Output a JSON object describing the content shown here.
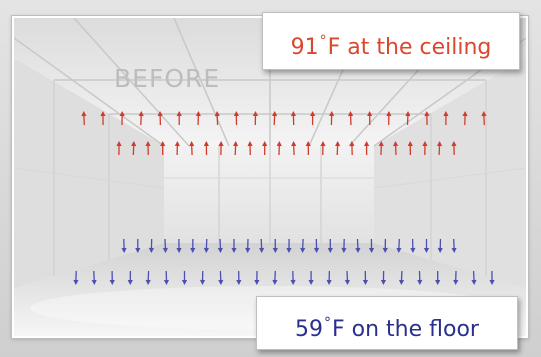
{
  "labels": {
    "before": "BEFORE",
    "ceiling_temp": "91",
    "ceiling_degree": "°",
    "ceiling_text": "F at the ceiling",
    "floor_temp": "59",
    "floor_degree": "°",
    "floor_text": "F on the floor"
  },
  "colors": {
    "warm_arrow": "#d23b2a",
    "cool_arrow": "#4a4fb0",
    "ceiling_text": "#d9482e",
    "floor_text": "#2a2f8e"
  },
  "arrow_rows": [
    {
      "name": "warm-row-1",
      "direction": "up",
      "color_key": "warm_arrow",
      "count": 22
    },
    {
      "name": "warm-row-2",
      "direction": "up",
      "color_key": "warm_arrow",
      "count": 24
    },
    {
      "name": "cool-row-1",
      "direction": "down",
      "color_key": "cool_arrow",
      "count": 25
    },
    {
      "name": "cool-row-2",
      "direction": "down",
      "color_key": "cool_arrow",
      "count": 24
    }
  ]
}
